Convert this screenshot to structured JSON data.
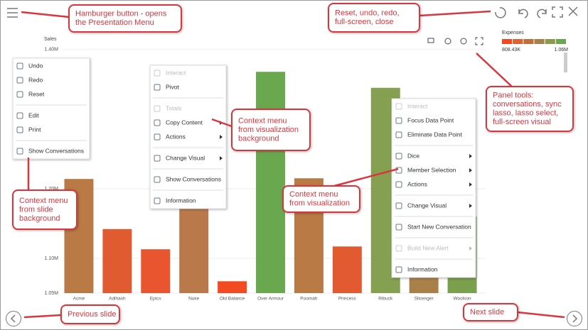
{
  "chart_data": {
    "type": "bar",
    "y_label": "Sales",
    "categories": [
      "Acme",
      "Adihash",
      "Epics",
      "Nuke",
      "Old Balance",
      "Over Armour",
      "Poomah",
      "Princess",
      "Ribuck",
      "Slicenger",
      "Woolson"
    ],
    "values": [
      1214000,
      1142000,
      1113000,
      1260000,
      1067000,
      1368000,
      1215000,
      1117000,
      1345000,
      1120000,
      1160000
    ],
    "colors": [
      "#b97a45",
      "#e15b30",
      "#e9552f",
      "#b9794a",
      "#f24b22",
      "#6aa84f",
      "#b97a45",
      "#e25a2f",
      "#84a050",
      "#a9804a",
      "#7aa04e"
    ],
    "ylim": [
      1050000,
      1410000
    ],
    "yticks": [
      {
        "value": 1050000,
        "label": "1.05M"
      },
      {
        "value": 1100000,
        "label": "1.10M"
      },
      {
        "value": 1200000,
        "label": "1.20M"
      },
      {
        "value": 1400000,
        "label": "1.40M"
      }
    ],
    "grid": true,
    "legend": {
      "title": "Expenses",
      "min": {
        "value": 808430,
        "label": "808.43K"
      },
      "max": {
        "value": 1060000,
        "label": "1.06M"
      },
      "colors": [
        "#f04a23",
        "#e06233",
        "#c06f3c",
        "#a8804a",
        "#8c9a4e",
        "#6aa84f"
      ]
    }
  },
  "menus": [
    {
      "groups": [
        [
          {
            "label": "Undo"
          },
          {
            "label": "Redo"
          },
          {
            "label": "Reset"
          }
        ],
        [
          {
            "label": "Edit"
          },
          {
            "label": "Print"
          }
        ],
        [
          {
            "label": "Show Conversations"
          }
        ]
      ]
    },
    {
      "groups": [
        [
          {
            "label": "Interact",
            "disabled": true
          },
          {
            "label": "Pivot"
          }
        ],
        [
          {
            "label": "Totals",
            "disabled": true
          },
          {
            "label": "Copy Content",
            "submenu": true
          },
          {
            "label": "Actions",
            "submenu": true
          }
        ],
        [
          {
            "label": "Change Visual",
            "submenu": true
          }
        ],
        [
          {
            "label": "Show Conversations"
          }
        ],
        [
          {
            "label": "Information"
          }
        ]
      ]
    },
    {
      "groups": [
        [
          {
            "label": "Interact",
            "disabled": true
          },
          {
            "label": "Focus Data Point"
          },
          {
            "label": "Eliminate Data Point"
          }
        ],
        [
          {
            "label": "Dice",
            "submenu": true
          },
          {
            "label": "Member Selection",
            "submenu": true
          },
          {
            "label": "Actions",
            "submenu": true
          }
        ],
        [
          {
            "label": "Change Visual",
            "submenu": true
          }
        ],
        [
          {
            "label": "Start New Conversation"
          }
        ],
        [
          {
            "label": "Build New Alert",
            "submenu": true,
            "disabled": true
          }
        ],
        [
          {
            "label": "Information"
          }
        ]
      ]
    }
  ],
  "callouts": [
    {
      "lines": [
        "Hamburger button - opens",
        "the Presentation Menu"
      ]
    },
    {
      "lines": [
        "Reset, undo, redo,",
        "full-screen, close"
      ]
    },
    {
      "lines": [
        "Panel tools:",
        "conversations, sync",
        "lasso, lasso select,",
        "full-screen visual"
      ]
    },
    {
      "lines": [
        "Context menu",
        "from visualization",
        "background"
      ]
    },
    {
      "lines": [
        "Context menu",
        "from visualization"
      ]
    },
    {
      "lines": [
        "Context menu",
        "from slide",
        "background"
      ]
    },
    {
      "lines": [
        "Previous slide"
      ]
    },
    {
      "lines": [
        "Next slide"
      ]
    }
  ]
}
